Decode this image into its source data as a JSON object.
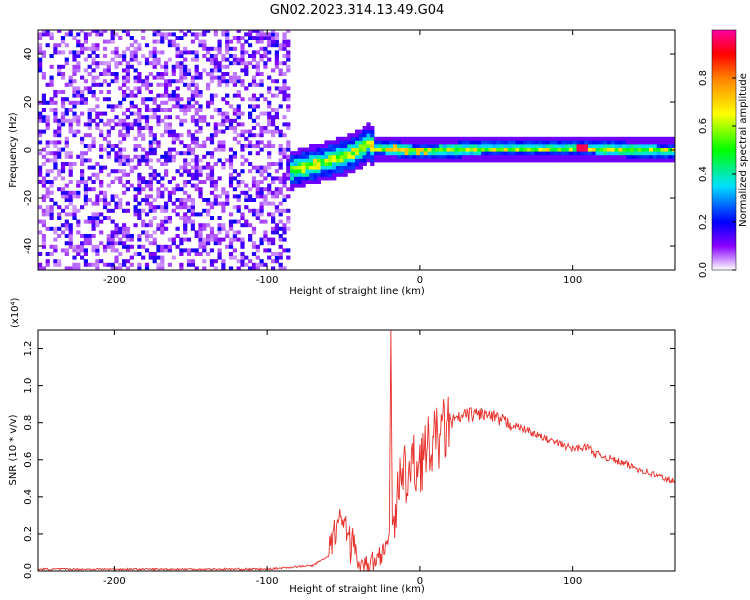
{
  "title": "GN02.2023.314.13.49.G04",
  "colors": {
    "snr_line": "#e8302a",
    "axis": "#000000",
    "colormap": [
      "#ffffff",
      "#8800ff",
      "#0000ff",
      "#00e0ff",
      "#00ff00",
      "#ffff00",
      "#ff8000",
      "#ff0000",
      "#ff00a0"
    ]
  },
  "chart_data": [
    {
      "type": "heatmap",
      "xlabel": "Height of straight line (km)",
      "ylabel": "Frequency (Hz)",
      "xlim": [
        -250,
        167
      ],
      "ylim": [
        -50,
        50
      ],
      "x_ticks": [
        -200,
        -100,
        0,
        100
      ],
      "x_tick_labels": [
        "-200",
        "-100",
        "0",
        "100"
      ],
      "y_ticks": [
        -40,
        -20,
        0,
        20,
        40
      ],
      "y_tick_labels": [
        "-40",
        "-20",
        "0",
        "20",
        "40"
      ],
      "colorbar": {
        "label": "Normalized spectral amplitude",
        "range": [
          0,
          1
        ],
        "ticks": [
          0.0,
          0.2,
          0.4,
          0.6,
          0.8
        ],
        "tick_labels": [
          "0.0",
          "0.2",
          "0.4",
          "0.6",
          "0.8"
        ]
      },
      "regions": [
        {
          "name": "noise",
          "x_range": [
            -250,
            -85
          ],
          "freq_range": [
            -50,
            50
          ],
          "amplitude": 0.1
        },
        {
          "name": "signal",
          "x_range": [
            -85,
            167
          ],
          "freq_center": [
            [
              -85,
              -9
            ],
            [
              -60,
              -5
            ],
            [
              -45,
              -2
            ],
            [
              -35,
              2
            ],
            [
              -30,
              0
            ],
            [
              0,
              -1
            ],
            [
              50,
              0
            ],
            [
              100,
              0
            ],
            [
              167,
              -1
            ]
          ],
          "amplitude": 0.7
        }
      ]
    },
    {
      "type": "line",
      "xlabel": "Height of straight line (km)",
      "ylabel": "SNR (10 * v/v)",
      "y_multiplier": "(x10⁴)",
      "xlim": [
        -250,
        167
      ],
      "ylim": [
        0,
        1.3
      ],
      "x_ticks": [
        -200,
        -100,
        0,
        100
      ],
      "x_tick_labels": [
        "-200",
        "-100",
        "0",
        "100"
      ],
      "y_ticks": [
        0,
        0.2,
        0.4,
        0.6,
        0.8,
        1.0,
        1.2
      ],
      "y_tick_labels": [
        "0.0",
        "0.2",
        "0.4",
        "0.6",
        "0.8",
        "1.0",
        "1.2"
      ],
      "series": [
        {
          "x": [
            -250,
            -200,
            -150,
            -100,
            -85,
            -70,
            -60,
            -55,
            -50,
            -45,
            -40,
            -35,
            -30,
            -25,
            -20,
            -19,
            -18,
            -17,
            -15,
            -10,
            0,
            10,
            20,
            30,
            40,
            50,
            60,
            70,
            80,
            90,
            100,
            110,
            115,
            120,
            130,
            140,
            150,
            160,
            167
          ],
          "y": [
            0.01,
            0.01,
            0.01,
            0.01,
            0.02,
            0.03,
            0.08,
            0.25,
            0.3,
            0.15,
            0.05,
            0.03,
            0.05,
            0.1,
            0.2,
            1.3,
            0.25,
            0.3,
            0.4,
            0.5,
            0.6,
            0.7,
            0.8,
            0.84,
            0.85,
            0.82,
            0.79,
            0.76,
            0.72,
            0.69,
            0.66,
            0.67,
            0.63,
            0.62,
            0.59,
            0.56,
            0.53,
            0.5,
            0.48
          ]
        }
      ]
    }
  ]
}
